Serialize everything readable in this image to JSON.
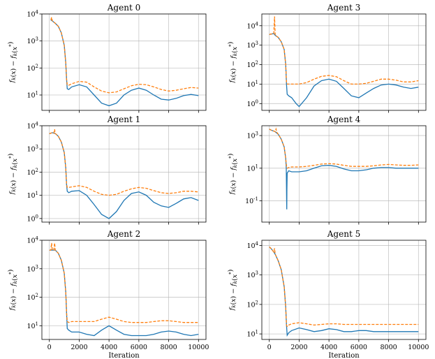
{
  "colors": {
    "series_solid": "#1f77b4",
    "series_dashed": "#ff7f0e"
  },
  "chart_data": [
    {
      "type": "line",
      "title": "Agent 0",
      "log_y": true,
      "ylim": [
        2.7,
        10000
      ],
      "yticks": [
        "10^1",
        "10^2",
        "10^3",
        "10^4"
      ],
      "ytick_exponents": [
        1,
        2,
        3,
        4
      ],
      "xlim": [
        -500,
        10500
      ],
      "xlabel": "",
      "ylabel": "f_k(x) − f_k(x^*)",
      "grid": true,
      "series": [
        {
          "style": "solid",
          "x": [
            100,
            200,
            400,
            600,
            800,
            1000,
            1100,
            1150,
            1200,
            1300,
            1500,
            2000,
            2500,
            3000,
            3500,
            4000,
            4500,
            5000,
            5500,
            6000,
            6500,
            7000,
            7500,
            8000,
            8500,
            9000,
            9500,
            10000
          ],
          "y": [
            6000,
            5500,
            4500,
            3500,
            2000,
            700,
            150,
            40,
            17,
            16,
            20,
            24,
            20,
            10,
            5,
            4,
            5,
            10,
            15,
            18,
            15,
            10,
            7,
            6.5,
            7.5,
            9.5,
            10.5,
            9.5
          ]
        },
        {
          "style": "dashed",
          "x": [
            100,
            150,
            200,
            400,
            600,
            800,
            1000,
            1100,
            1150,
            1200,
            1300,
            1500,
            2000,
            2500,
            3000,
            3500,
            4000,
            4500,
            5000,
            5500,
            6000,
            6500,
            7000,
            7500,
            8000,
            8500,
            9000,
            9500,
            10000
          ],
          "y": [
            6000,
            7500,
            5500,
            4500,
            3500,
            2000,
            700,
            150,
            40,
            24,
            23,
            26,
            32,
            30,
            20,
            14,
            12,
            13,
            17,
            22,
            25,
            24,
            20,
            16,
            14,
            15,
            17,
            19,
            18
          ]
        }
      ]
    },
    {
      "type": "line",
      "title": "Agent 3",
      "log_y": true,
      "ylim": [
        0.45,
        40000
      ],
      "yticks": [
        "10^0",
        "10^1",
        "10^2",
        "10^3",
        "10^4"
      ],
      "ytick_exponents": [
        0,
        1,
        2,
        3,
        4
      ],
      "xlim": [
        -500,
        10500
      ],
      "xlabel": "",
      "ylabel": "f_k(x) − f_k(x^*)",
      "grid": true,
      "series": [
        {
          "style": "solid",
          "x": [
            0,
            100,
            200,
            300,
            350,
            400,
            600,
            800,
            1000,
            1100,
            1150,
            1200,
            1300,
            1500,
            1800,
            2000,
            2500,
            3000,
            3500,
            4000,
            4500,
            5000,
            5500,
            6000,
            6500,
            7000,
            7500,
            8000,
            8500,
            9000,
            9500,
            10000
          ],
          "y": [
            3500,
            3700,
            3800,
            4000,
            3500,
            3200,
            2500,
            1500,
            600,
            100,
            10,
            3,
            2.5,
            2,
            1,
            0.7,
            2,
            8,
            15,
            18,
            14,
            6,
            2.5,
            2,
            3.5,
            6,
            9,
            10,
            9,
            7,
            6,
            7
          ]
        },
        {
          "style": "dashed",
          "x": [
            0,
            100,
            200,
            300,
            350,
            400,
            600,
            800,
            1000,
            1100,
            1150,
            1200,
            1300,
            1500,
            2000,
            2500,
            3000,
            3500,
            4000,
            4500,
            5000,
            5500,
            6000,
            6500,
            7000,
            7500,
            8000,
            8500,
            9000,
            9500,
            10000
          ],
          "y": [
            3500,
            3700,
            3800,
            4000,
            30000,
            3200,
            2500,
            1500,
            600,
            100,
            12,
            10,
            10,
            10,
            10,
            12,
            18,
            25,
            28,
            24,
            15,
            10,
            10,
            11,
            14,
            18,
            18,
            16,
            13,
            13,
            15
          ]
        }
      ]
    },
    {
      "type": "line",
      "title": "Agent 1",
      "log_y": true,
      "ylim": [
        0.7,
        10000
      ],
      "yticks": [
        "10^0",
        "10^1",
        "10^2",
        "10^3",
        "10^4"
      ],
      "ytick_exponents": [
        0,
        1,
        2,
        3,
        4
      ],
      "xlim": [
        -500,
        10500
      ],
      "xlabel": "",
      "ylabel": "f_k(x) − f_k(x^*)",
      "grid": true,
      "series": [
        {
          "style": "solid",
          "x": [
            0,
            100,
            200,
            300,
            400,
            600,
            800,
            1000,
            1100,
            1150,
            1200,
            1300,
            1500,
            2000,
            2500,
            3000,
            3500,
            4000,
            4500,
            5000,
            5500,
            6000,
            6500,
            7000,
            7500,
            8000,
            8500,
            9000,
            9500,
            10000
          ],
          "y": [
            4500,
            4800,
            5000,
            4800,
            4600,
            3500,
            2000,
            700,
            150,
            30,
            15,
            13,
            15,
            16,
            10,
            4,
            1.5,
            1,
            2,
            6,
            12,
            14,
            10,
            5,
            3.5,
            3,
            4.5,
            7,
            8,
            6
          ]
        },
        {
          "style": "dashed",
          "x": [
            0,
            100,
            200,
            300,
            350,
            400,
            600,
            800,
            1000,
            1100,
            1150,
            1200,
            1300,
            1500,
            2000,
            2500,
            3000,
            3500,
            4000,
            4500,
            5000,
            5500,
            6000,
            6500,
            7000,
            7500,
            8000,
            8500,
            9000,
            9500,
            10000
          ],
          "y": [
            4500,
            4800,
            5000,
            4800,
            7000,
            4600,
            3500,
            2000,
            700,
            150,
            30,
            22,
            22,
            23,
            26,
            22,
            15,
            11,
            10,
            11,
            15,
            19,
            22,
            20,
            16,
            13,
            12,
            13,
            15,
            15,
            14
          ]
        }
      ]
    },
    {
      "type": "line",
      "title": "Agent 4",
      "log_y": true,
      "ylim": [
        0.005,
        4000
      ],
      "yticks": [
        "10^-1",
        "10^1",
        "10^3"
      ],
      "ytick_exponents": [
        -1,
        1,
        3
      ],
      "xlim": [
        -500,
        10500
      ],
      "xlabel": "",
      "ylabel": "f_k(x) − f_k(x^*)",
      "grid": true,
      "series": [
        {
          "style": "solid",
          "x": [
            0,
            100,
            200,
            300,
            400,
            600,
            800,
            1000,
            1100,
            1140,
            1160,
            1170,
            1180,
            1200,
            1300,
            1500,
            2000,
            2500,
            3000,
            3500,
            4000,
            4500,
            5000,
            5500,
            6000,
            6500,
            7000,
            7500,
            8000,
            8500,
            9000,
            9500,
            10000
          ],
          "y": [
            2500,
            2200,
            2000,
            1900,
            1700,
            1200,
            600,
            200,
            40,
            10,
            0.1,
            0.03,
            0.5,
            5,
            7,
            6,
            6,
            7,
            10,
            14,
            15,
            13,
            9,
            7,
            7,
            8,
            10,
            11,
            11,
            10,
            10,
            10,
            10
          ]
        },
        {
          "style": "dashed",
          "x": [
            0,
            100,
            200,
            300,
            400,
            450,
            500,
            600,
            800,
            1000,
            1100,
            1150,
            1200,
            1300,
            1500,
            2000,
            2500,
            3000,
            3500,
            4000,
            4500,
            5000,
            5500,
            6000,
            6500,
            7000,
            7500,
            8000,
            8500,
            9000,
            9500,
            10000
          ],
          "y": [
            2500,
            2200,
            2000,
            1900,
            1700,
            2500,
            1600,
            1200,
            600,
            200,
            40,
            14,
            10,
            11,
            12,
            12,
            13,
            15,
            18,
            19,
            18,
            15,
            13,
            13,
            13,
            14,
            16,
            17,
            16,
            15,
            15,
            16
          ]
        }
      ]
    },
    {
      "type": "line",
      "title": "Agent 2",
      "log_y": true,
      "ylim": [
        3.3,
        10000
      ],
      "yticks": [
        "10^1",
        "10^2",
        "10^3",
        "10^4"
      ],
      "ytick_exponents": [
        1,
        2,
        3,
        4
      ],
      "xlim": [
        -500,
        10500
      ],
      "xlabel": "Iteration",
      "ylabel": "f_k(x) − f_k(x^*)",
      "grid": true,
      "series": [
        {
          "style": "solid",
          "x": [
            0,
            100,
            200,
            300,
            400,
            600,
            800,
            1000,
            1100,
            1150,
            1200,
            1300,
            1500,
            2000,
            2500,
            3000,
            3500,
            4000,
            4500,
            5000,
            5500,
            6000,
            6500,
            7000,
            7500,
            8000,
            8500,
            9000,
            9500,
            10000
          ],
          "y": [
            4500,
            4500,
            4500,
            4500,
            4500,
            3500,
            2000,
            700,
            150,
            30,
            8,
            7,
            6,
            6,
            5,
            4.5,
            7,
            10,
            7,
            5,
            4.5,
            4.5,
            4.5,
            5,
            6,
            6.5,
            6,
            5,
            4.5,
            5
          ]
        },
        {
          "style": "dashed",
          "x": [
            0,
            100,
            150,
            200,
            300,
            350,
            400,
            600,
            800,
            1000,
            1100,
            1150,
            1200,
            1300,
            1500,
            2000,
            2500,
            3000,
            3500,
            4000,
            4500,
            5000,
            5500,
            6000,
            6500,
            7000,
            7500,
            8000,
            8500,
            9000,
            9500,
            10000
          ],
          "y": [
            4500,
            4500,
            8000,
            4500,
            4500,
            8000,
            4500,
            3500,
            2000,
            700,
            150,
            30,
            14,
            13,
            14,
            14,
            14,
            14,
            17,
            20,
            17,
            14,
            13,
            13,
            13,
            14,
            15,
            15,
            14,
            13,
            13,
            13
          ]
        }
      ]
    },
    {
      "type": "line",
      "title": "Agent 5",
      "log_y": true,
      "ylim": [
        6.5,
        15000
      ],
      "yticks": [
        "10^1",
        "10^2",
        "10^3",
        "10^4"
      ],
      "ytick_exponents": [
        1,
        2,
        3,
        4
      ],
      "xlim": [
        -500,
        10500
      ],
      "xlabel": "Iteration",
      "ylabel": "f_k(x) − f_k(x^*)",
      "grid": true,
      "series": [
        {
          "style": "solid",
          "x": [
            0,
            100,
            200,
            300,
            400,
            600,
            800,
            1000,
            1100,
            1150,
            1200,
            1300,
            1500,
            2000,
            2500,
            3000,
            3500,
            4000,
            4500,
            5000,
            5500,
            6000,
            6500,
            7000,
            7500,
            8000,
            8500,
            9000,
            9500,
            10000
          ],
          "y": [
            9000,
            8000,
            7000,
            6000,
            5000,
            3000,
            1500,
            400,
            80,
            20,
            9,
            11,
            13,
            16,
            14,
            12,
            13,
            15,
            14,
            12,
            12,
            13,
            13,
            12,
            12,
            12,
            12,
            12,
            12,
            12
          ]
        },
        {
          "style": "dashed",
          "x": [
            0,
            100,
            200,
            300,
            350,
            400,
            600,
            800,
            1000,
            1100,
            1150,
            1200,
            1300,
            1500,
            2000,
            2500,
            3000,
            3500,
            4000,
            4500,
            5000,
            5500,
            6000,
            6500,
            7000,
            7500,
            8000,
            8500,
            9000,
            9500,
            10000
          ],
          "y": [
            9000,
            8000,
            7000,
            6000,
            8000,
            5000,
            3000,
            1500,
            400,
            80,
            20,
            18,
            20,
            22,
            24,
            22,
            20,
            21,
            22,
            22,
            21,
            21,
            21,
            21,
            21,
            21,
            21,
            21,
            21,
            21,
            21
          ]
        }
      ]
    }
  ]
}
